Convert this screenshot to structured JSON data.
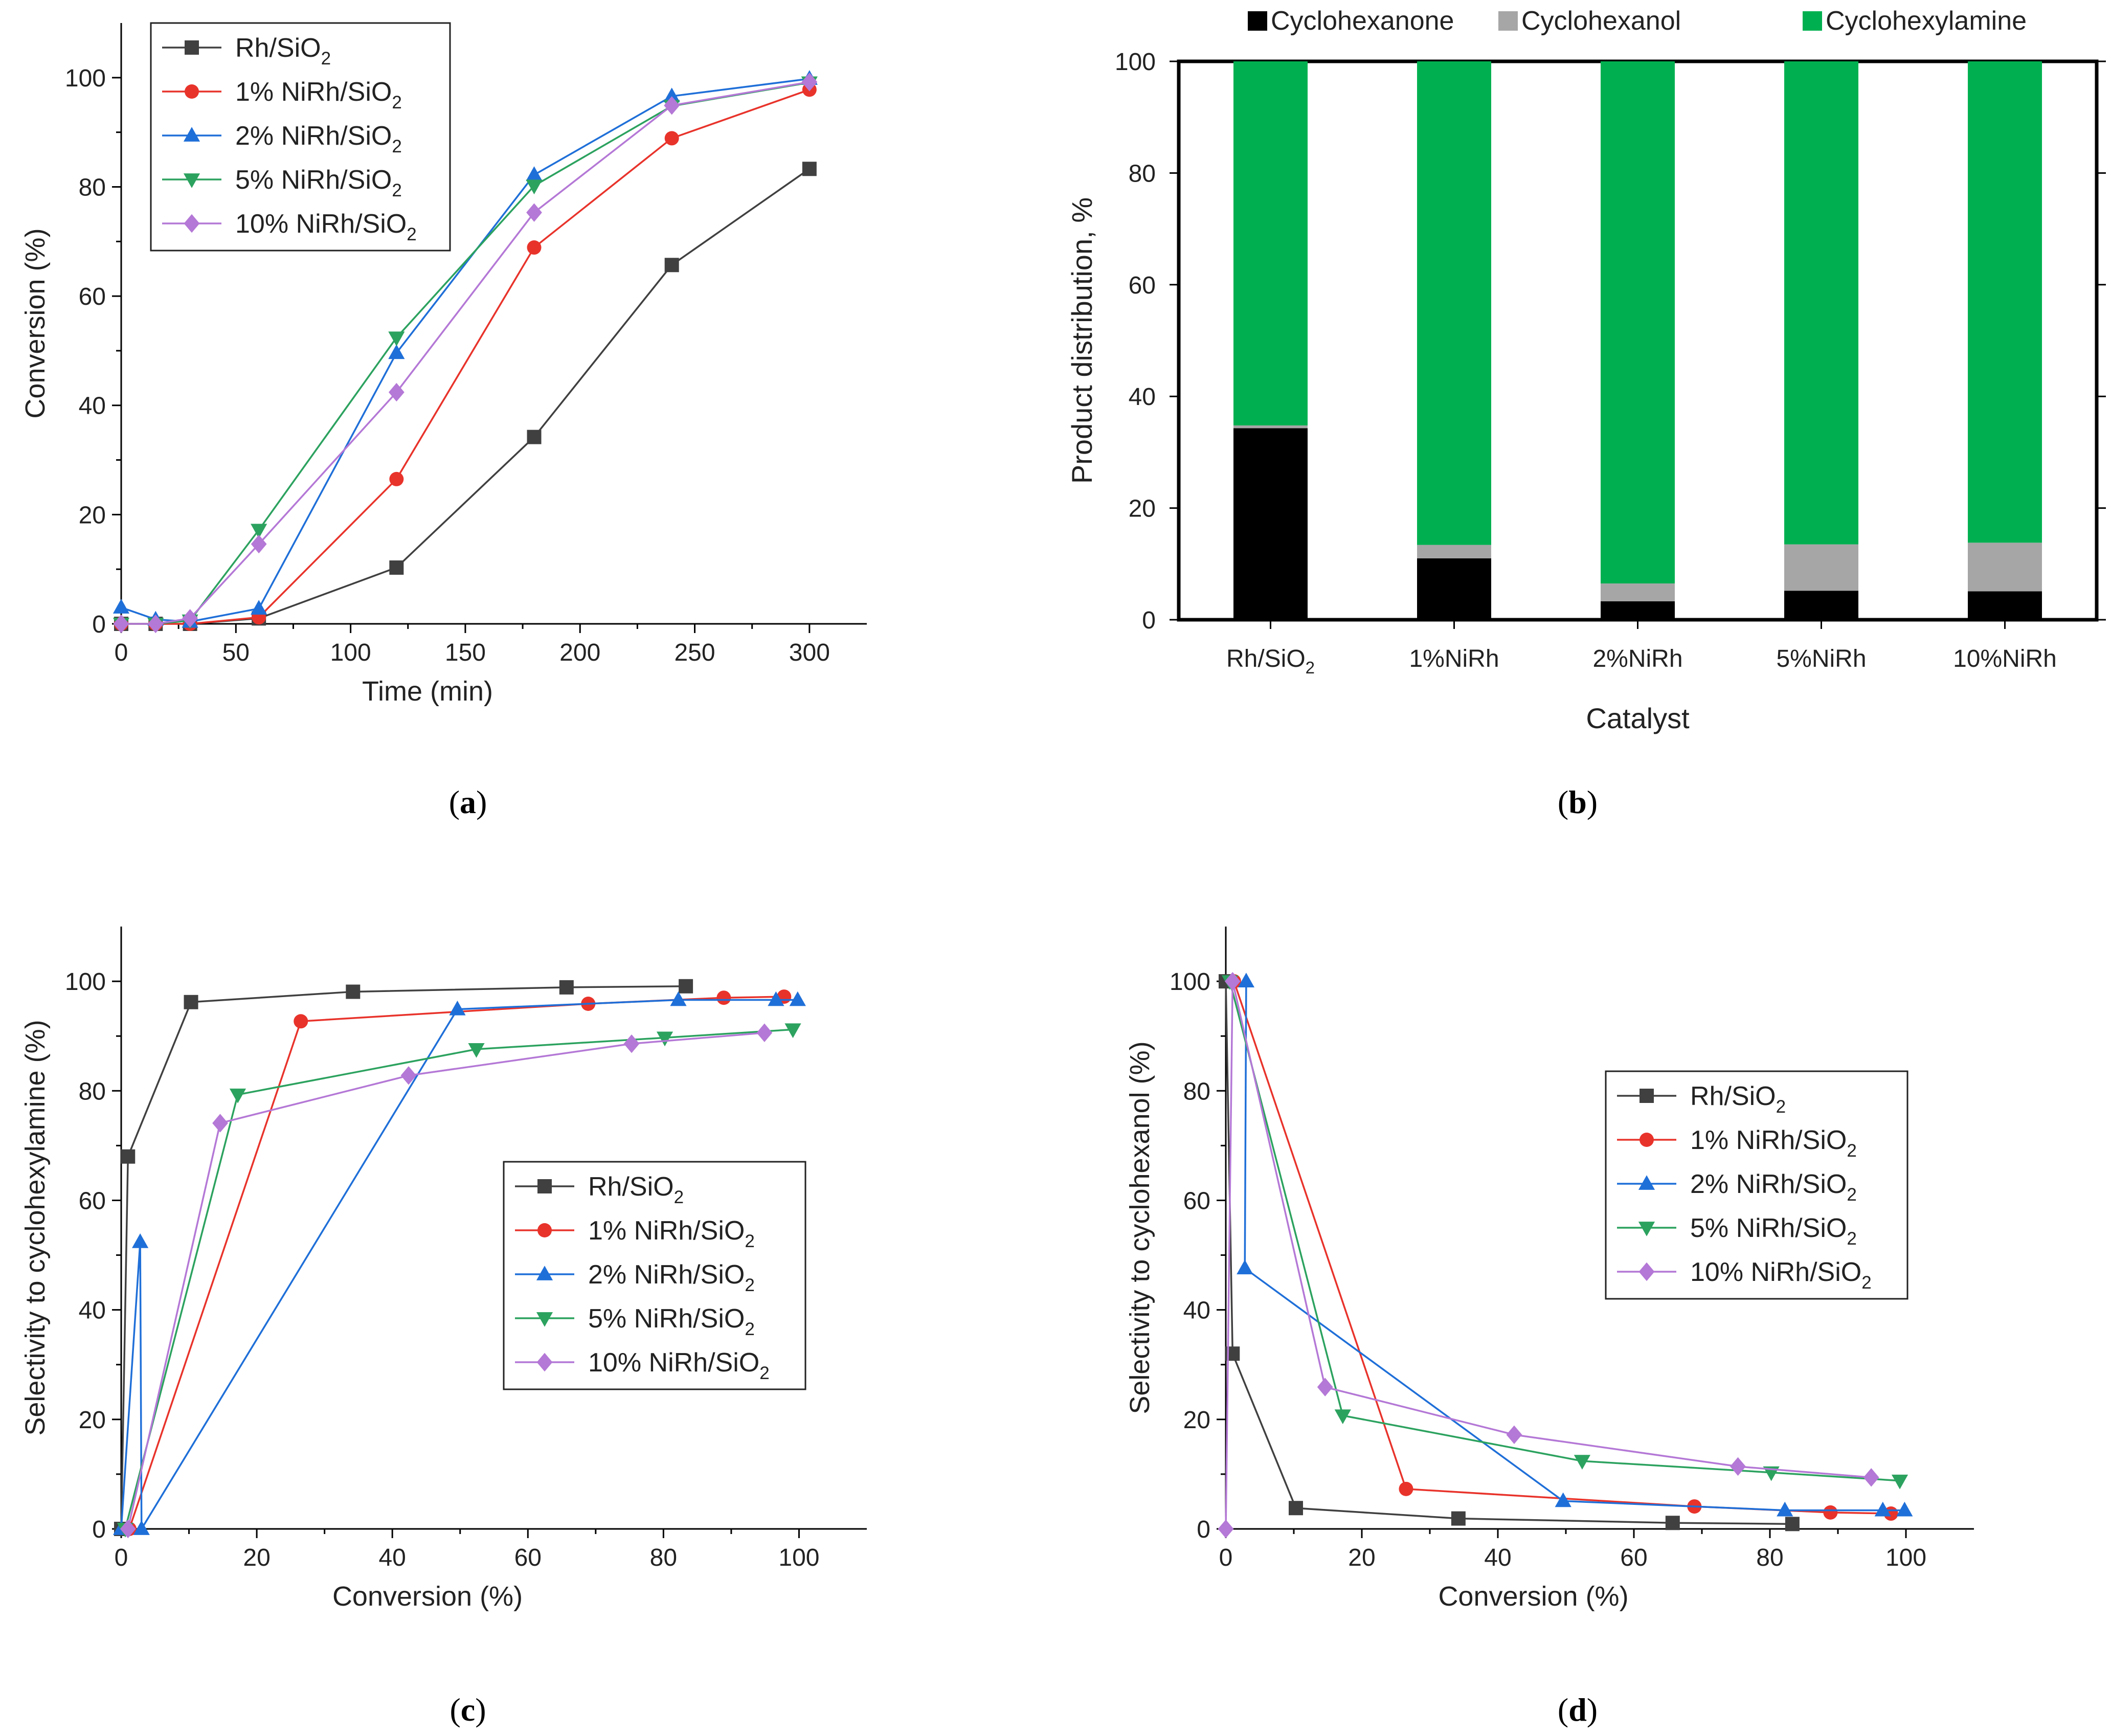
{
  "chart_data": [
    {
      "id": "a",
      "type": "line",
      "panel_label": "a",
      "xlabel": "Time (min)",
      "ylabel": "Conversion (%)",
      "xlim": [
        0,
        325
      ],
      "ylim": [
        0,
        110
      ],
      "xticks": [
        0,
        50,
        100,
        150,
        200,
        250,
        300
      ],
      "yticks": [
        0,
        20,
        40,
        60,
        80,
        100
      ],
      "legend": "top-left",
      "series": [
        {
          "name": "Rh/SiO",
          "sub": "2",
          "color": "#404040",
          "marker": "square",
          "x": [
            0,
            15,
            30,
            60,
            120,
            180,
            240,
            300
          ],
          "y": [
            0,
            0,
            0,
            1,
            10.3,
            34.2,
            65.7,
            83.3
          ]
        },
        {
          "name": "1% NiRh/SiO",
          "sub": "2",
          "color": "#e8332b",
          "marker": "circle",
          "x": [
            0,
            15,
            30,
            60,
            120,
            180,
            240,
            300
          ],
          "y": [
            0,
            0,
            0,
            1.2,
            26.5,
            68.9,
            88.9,
            97.8
          ]
        },
        {
          "name": "2% NiRh/SiO",
          "sub": "2",
          "color": "#1f6fd8",
          "marker": "triangle-up",
          "x": [
            0,
            15,
            30,
            60,
            120,
            180,
            240,
            300
          ],
          "y": [
            3,
            0.8,
            0.4,
            2.8,
            49.6,
            82.2,
            96.6,
            99.8
          ]
        },
        {
          "name": "5% NiRh/SiO",
          "sub": "2",
          "color": "#2ca25f",
          "marker": "triangle-down",
          "x": [
            0,
            15,
            30,
            60,
            120,
            180,
            240,
            300
          ],
          "y": [
            0,
            0,
            0.6,
            17.2,
            52.4,
            80.2,
            94.8,
            99.1
          ]
        },
        {
          "name": "10% NiRh/SiO",
          "sub": "2",
          "color": "#b478d6",
          "marker": "diamond",
          "x": [
            0,
            15,
            30,
            60,
            120,
            180,
            240,
            300
          ],
          "y": [
            0,
            0,
            1,
            14.6,
            42.4,
            75.3,
            94.9,
            99.2
          ]
        }
      ]
    },
    {
      "id": "b",
      "type": "bar",
      "stacked": true,
      "panel_label": "b",
      "xlabel": "Catalyst",
      "ylabel": "Product distribution, %",
      "ylim": [
        0,
        100
      ],
      "yticks": [
        0,
        20,
        40,
        60,
        80,
        100
      ],
      "categories": [
        {
          "main": "Rh/SiO",
          "sub": "2"
        },
        {
          "main": "1%NiRh",
          "sub": ""
        },
        {
          "main": "2%NiRh",
          "sub": ""
        },
        {
          "main": "5%NiRh",
          "sub": ""
        },
        {
          "main": "10%NiRh",
          "sub": ""
        }
      ],
      "legend": "top",
      "series": [
        {
          "name": "Cyclohexanone",
          "color": "#000000",
          "values": [
            34.3,
            11.0,
            3.3,
            5.2,
            5.1
          ]
        },
        {
          "name": "Cyclohexanol",
          "color": "#a6a6a6",
          "values": [
            0.5,
            2.4,
            3.2,
            8.3,
            8.7
          ]
        },
        {
          "name": "Cyclohexylamine",
          "color": "#00b050",
          "values": [
            65.2,
            86.6,
            93.5,
            86.5,
            86.2
          ]
        }
      ]
    },
    {
      "id": "c",
      "type": "line",
      "panel_label": "c",
      "xlabel": "Conversion (%)",
      "ylabel": "Selectivity to cyclohexylamine (%)",
      "xlim": [
        0,
        110
      ],
      "ylim": [
        0,
        110
      ],
      "xticks": [
        0,
        20,
        40,
        60,
        80,
        100
      ],
      "yticks": [
        0,
        20,
        40,
        60,
        80,
        100
      ],
      "legend": "center-right",
      "series": [
        {
          "name": "Rh/SiO",
          "sub": "2",
          "color": "#404040",
          "marker": "square",
          "x": [
            0,
            1,
            10.3,
            34.2,
            65.7,
            83.3
          ],
          "y": [
            0,
            68,
            96.2,
            98.1,
            98.9,
            99.1
          ]
        },
        {
          "name": "1% NiRh/SiO",
          "sub": "2",
          "color": "#e8332b",
          "marker": "circle",
          "x": [
            1.2,
            26.5,
            68.9,
            88.9,
            97.8
          ],
          "y": [
            0,
            92.7,
            95.9,
            97.0,
            97.2
          ]
        },
        {
          "name": "2% NiRh/SiO",
          "sub": "2",
          "color": "#1f6fd8",
          "marker": "triangle-up",
          "x": [
            0,
            2.8,
            3,
            49.6,
            82.2,
            96.6,
            99.8
          ],
          "y": [
            0,
            52.4,
            0,
            94.9,
            96.6,
            96.6,
            96.6
          ]
        },
        {
          "name": "5% NiRh/SiO",
          "sub": "2",
          "color": "#2ca25f",
          "marker": "triangle-down",
          "x": [
            0.6,
            17.2,
            52.4,
            80.2,
            99.1
          ],
          "y": [
            0,
            79.3,
            87.6,
            89.7,
            91.2
          ]
        },
        {
          "name": "10% NiRh/SiO",
          "sub": "2",
          "color": "#b478d6",
          "marker": "diamond",
          "x": [
            1,
            14.6,
            42.4,
            75.3,
            94.9
          ],
          "y": [
            0,
            74.1,
            82.8,
            88.6,
            90.6
          ]
        }
      ]
    },
    {
      "id": "d",
      "type": "line",
      "panel_label": "d",
      "xlabel": "Conversion (%)",
      "ylabel": "Selectivity to cyclohexanol (%)",
      "xlim": [
        0,
        110
      ],
      "ylim": [
        0,
        110
      ],
      "xticks": [
        0,
        20,
        40,
        60,
        80,
        100
      ],
      "yticks": [
        0,
        20,
        40,
        60,
        80,
        100
      ],
      "legend": "center-right",
      "series": [
        {
          "name": "Rh/SiO",
          "sub": "2",
          "color": "#404040",
          "marker": "square",
          "x": [
            0,
            1,
            10.3,
            34.2,
            65.7,
            83.3
          ],
          "y": [
            100,
            32,
            3.8,
            1.9,
            1.1,
            0.9
          ]
        },
        {
          "name": "1% NiRh/SiO",
          "sub": "2",
          "color": "#e8332b",
          "marker": "circle",
          "x": [
            1.2,
            26.5,
            68.9,
            88.9,
            97.8
          ],
          "y": [
            100,
            7.3,
            4.1,
            3.0,
            2.8
          ]
        },
        {
          "name": "2% NiRh/SiO",
          "sub": "2",
          "color": "#1f6fd8",
          "marker": "triangle-up",
          "x": [
            3,
            2.8,
            49.6,
            82.2,
            96.6,
            99.8
          ],
          "y": [
            100,
            47.6,
            5.1,
            3.4,
            3.4,
            3.4
          ]
        },
        {
          "name": "5% NiRh/SiO",
          "sub": "2",
          "color": "#2ca25f",
          "marker": "triangle-down",
          "x": [
            0.6,
            17.2,
            52.4,
            80.2,
            99.1
          ],
          "y": [
            100,
            20.7,
            12.4,
            10.3,
            8.8
          ]
        },
        {
          "name": "10% NiRh/SiO",
          "sub": "2",
          "color": "#b478d6",
          "marker": "diamond",
          "x": [
            0,
            1,
            14.6,
            42.4,
            75.3,
            94.9
          ],
          "y": [
            0,
            100,
            25.9,
            17.2,
            11.4,
            9.4
          ]
        }
      ]
    }
  ]
}
